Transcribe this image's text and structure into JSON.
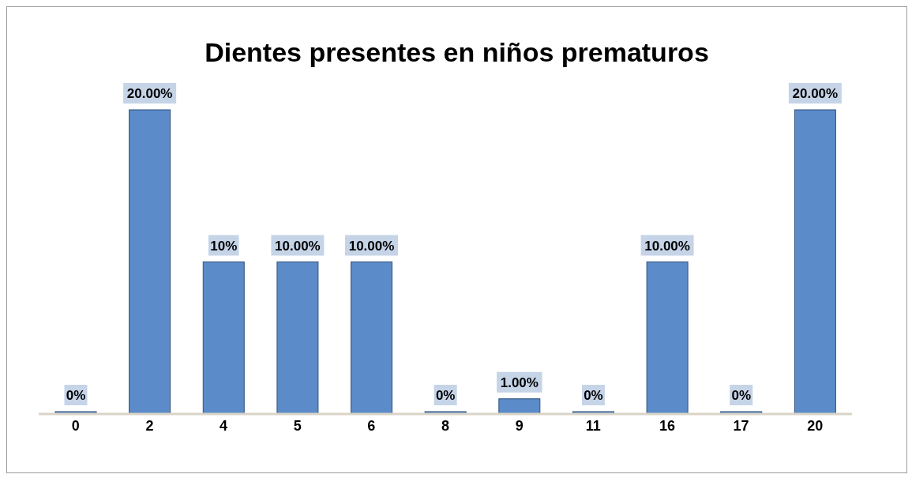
{
  "chart_data": {
    "type": "bar",
    "title": "Dientes presentes en niños prematuros",
    "categories": [
      "0",
      "2",
      "4",
      "5",
      "6",
      "8",
      "9",
      "11",
      "16",
      "17",
      "20"
    ],
    "values": [
      0,
      20,
      10,
      10,
      10,
      0,
      1,
      0,
      10,
      0,
      20
    ],
    "value_labels": [
      "0%",
      "20.00%",
      "10%",
      "10.00%",
      "10.00%",
      "0%",
      "1.00%",
      "0%",
      "10.00%",
      "0%",
      "20.00%"
    ],
    "color": "#5b8bc9",
    "grid": false
  }
}
